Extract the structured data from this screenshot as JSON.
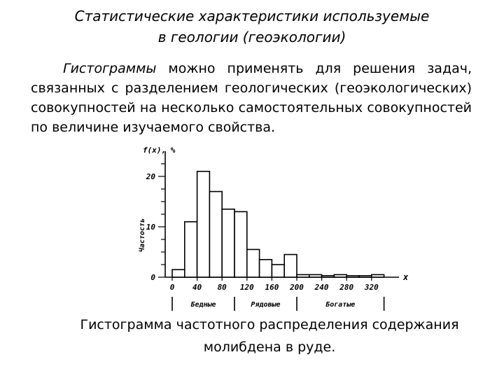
{
  "slide": {
    "title_line1": "Статистические характеристики используемые",
    "title_line2": "в геологии (геоэкологии)",
    "body_lead": "Гистограммы",
    "body_rest": " можно применять для решения задач, связанных с разделением геологических (геоэкологических) совокупностей на несколько самостоятельных совокупностей по величине изучаемого свойства.",
    "caption_line1": "Гистограмма частотного распределения содержания",
    "caption_line2": "молибдена в руде."
  },
  "chart_data": {
    "type": "bar",
    "ylabel": "Частость",
    "yaxis_title": "f(x), %",
    "xaxis_title": "x",
    "ylim": [
      0,
      25
    ],
    "y_ticks": [
      0,
      10,
      20
    ],
    "x_ticks": [
      0,
      40,
      80,
      120,
      160,
      200,
      240,
      280,
      320
    ],
    "x_tick_labels": [
      "0",
      "40",
      "80",
      "120",
      "160",
      "200",
      "240",
      "280",
      "320"
    ],
    "bin_width": 20,
    "bins": [
      {
        "x0": 0,
        "x1": 20,
        "value": 1.5
      },
      {
        "x0": 20,
        "x1": 40,
        "value": 11
      },
      {
        "x0": 40,
        "x1": 60,
        "value": 21
      },
      {
        "x0": 60,
        "x1": 80,
        "value": 17
      },
      {
        "x0": 80,
        "x1": 100,
        "value": 13.5
      },
      {
        "x0": 100,
        "x1": 120,
        "value": 13
      },
      {
        "x0": 120,
        "x1": 140,
        "value": 5.5
      },
      {
        "x0": 140,
        "x1": 160,
        "value": 3.5
      },
      {
        "x0": 160,
        "x1": 180,
        "value": 2.5
      },
      {
        "x0": 180,
        "x1": 200,
        "value": 4.5
      },
      {
        "x0": 200,
        "x1": 220,
        "value": 0.5
      },
      {
        "x0": 220,
        "x1": 240,
        "value": 0.5
      },
      {
        "x0": 240,
        "x1": 260,
        "value": 0.3
      },
      {
        "x0": 260,
        "x1": 280,
        "value": 0.5
      },
      {
        "x0": 280,
        "x1": 300,
        "value": 0.3
      },
      {
        "x0": 300,
        "x1": 320,
        "value": 0.3
      },
      {
        "x0": 320,
        "x1": 340,
        "value": 0.5
      }
    ],
    "groups": [
      {
        "label": "Бедные",
        "x0": 0,
        "x1": 100
      },
      {
        "label": "Рядовые",
        "x0": 100,
        "x1": 200
      },
      {
        "label": "Богатые",
        "x0": 200,
        "x1": 340
      }
    ],
    "grid": false
  }
}
